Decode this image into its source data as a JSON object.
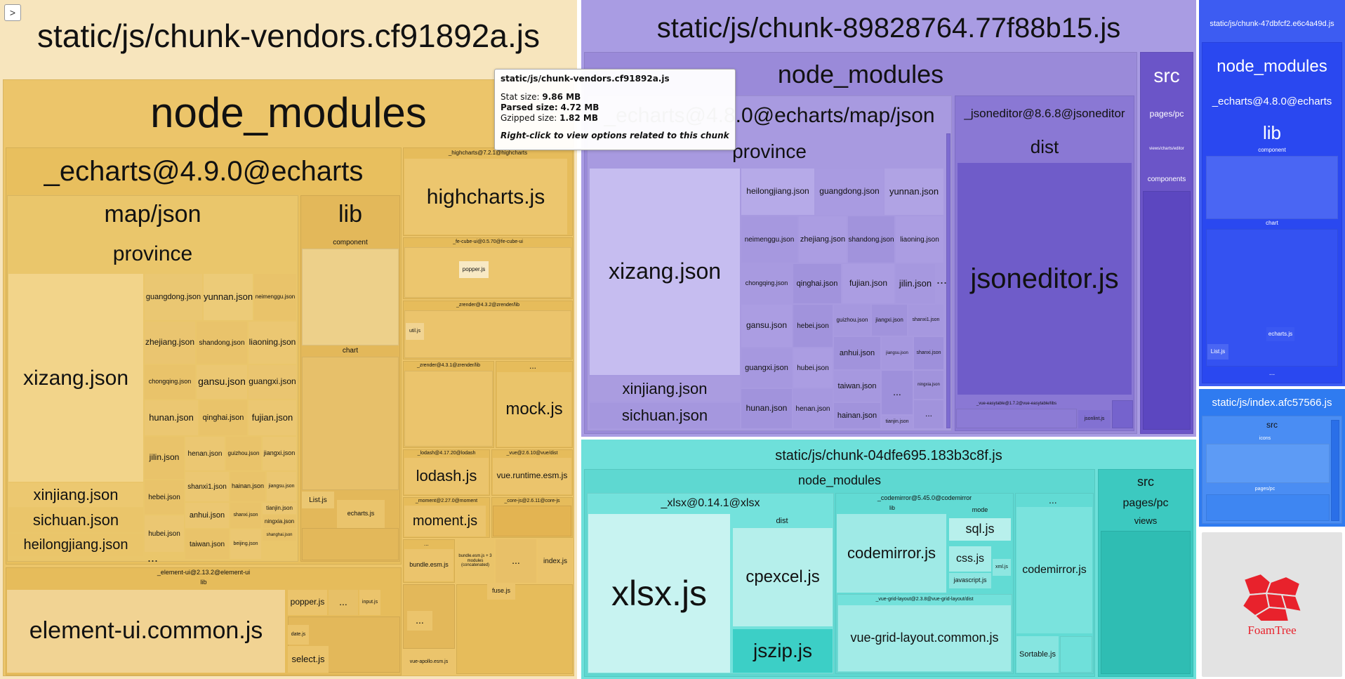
{
  "sidebar_toggle": {
    "icon": "chevron-right-icon",
    "glyph": ">"
  },
  "colors": {
    "vendors": "#e8b84f",
    "purple": "#8a73d6",
    "teal": "#3fd1c6",
    "blue": "#2a48f0",
    "index": "#2f7bf0",
    "foamtree": "#e8222c"
  },
  "vendors": {
    "title": "static/js/chunk-vendors.cf91892a.js",
    "node_modules": "node_modules",
    "echarts": "_echarts@4.9.0@echarts",
    "map_json": "map/json",
    "province": "province",
    "lib": "lib",
    "component": "component",
    "chart": "chart",
    "list_js": "List.js",
    "echarts_js": "echarts.js",
    "provinces": {
      "xizang": "xizang.json",
      "xinjiang": "xinjiang.json",
      "sichuan": "sichuan.json",
      "heilongjiang": "heilongjiang.json",
      "guangdong": "guangdong.json",
      "yunnan": "yunnan.json",
      "neimenggu": "neimenggu.json",
      "zhejiang": "zhejiang.json",
      "shandong": "shandong.json",
      "liaoning": "liaoning.json",
      "chongqing": "chongqing.json",
      "gansu": "gansu.json",
      "guangxi": "guangxi.json",
      "hunan": "hunan.json",
      "qinghai": "qinghai.json",
      "fujian": "fujian.json",
      "jilin": "jilin.json",
      "henan": "henan.json",
      "guizhou": "guizhou.json",
      "jiangxi": "jiangxi.json",
      "hebei": "hebei.json",
      "shanxi1": "shanxi1.json",
      "hainan": "hainan.json",
      "jiangsu": "jiangsu.json",
      "anhui": "anhui.json",
      "shanxi": "shanxi.json",
      "tianjin": "tianjin.json",
      "ningxia": "ningxia.json",
      "hubei": "hubei.json",
      "taiwan": "taiwan.json",
      "beijing": "beijing.json",
      "shanghai": "shanghai.json"
    },
    "highcharts_pkg": "_highcharts@7.2.1@highcharts",
    "highcharts_js": "highcharts.js",
    "fe_cube": "_fe-cube-ui@0.5.70@fe-cube-ui",
    "popper_js": "popper.js",
    "zrender_lib1": "_zrender@4.3.2@zrender/lib",
    "util_js": "util.js",
    "zrender_lib2": "_zrender@4.3.1@zrender/lib",
    "mock_js": "mock.js",
    "lodash_pkg": "_lodash@4.17.20@lodash",
    "lodash_js": "lodash.js",
    "vue_dist": "_vue@2.6.10@vue/dist",
    "vue_runtime": "vue.runtime.esm.js",
    "moment_pkg": "_moment@2.27.0@moment",
    "moment_js": "moment.js",
    "corejs": "_core-js@2.6.11@core-js",
    "bundle_esm": "bundle.esm.js",
    "bundle_concat": "bundle.esm.js + 3 modules (concatenated)",
    "index_js": "index.js",
    "fuse_js": "fuse.js",
    "vue_apollo": "vue-apollo.esm.js",
    "element_pkg": "_element-ui@2.13.2@element-ui",
    "element_lib": "lib",
    "element_common": "element-ui.common.js",
    "popper_js2": "popper.js",
    "input_js": "input.js",
    "date_js": "date.js",
    "select_js": "select.js",
    "ellipsis": "..."
  },
  "tooltip": {
    "title": "static/js/chunk-vendors.cf91892a.js",
    "stat_label": "Stat size:",
    "stat_value": "9.86 MB",
    "parsed_label": "Parsed size:",
    "parsed_value": "4.72 MB",
    "gzip_label": "Gzipped size:",
    "gzip_value": "1.82 MB",
    "hint": "Right-click to view options related to this chunk"
  },
  "purple_chunk": {
    "title": "static/js/chunk-89828764.77f88b15.js",
    "node_modules": "node_modules",
    "echarts_map": "_echarts@4.8.0@echarts/map/json",
    "province": "province",
    "xizang": "xizang.json",
    "xinjiang": "xinjiang.json",
    "sichuan": "sichuan.json",
    "heilongjiang": "heilongjiang.json",
    "guangdong": "guangdong.json",
    "yunnan": "yunnan.json",
    "neimenggu": "neimenggu.json",
    "zhejiang": "zhejiang.json",
    "shandong": "shandong.json",
    "liaoning": "liaoning.json",
    "chongqing": "chongqing.json",
    "qinghai": "qinghai.json",
    "fujian": "fujian.json",
    "jilin": "jilin.json",
    "gansu": "gansu.json",
    "hebei": "hebei.json",
    "guizhou": "guizhou.json",
    "jiangxi": "jiangxi.json",
    "shanxi1": "shanxi1.json",
    "anhui": "anhui.json",
    "jiangsu": "jiangsu.json",
    "shanxi": "shanxi.json",
    "guangxi": "guangxi.json",
    "hubei": "hubei.json",
    "taiwan": "taiwan.json",
    "ningxia": "ningxia.json",
    "hunan": "hunan.json",
    "henan": "henan.json",
    "hainan": "hainan.json",
    "tianjin": "tianjin.json",
    "jsoneditor_pkg": "_jsoneditor@8.6.8@jsoneditor",
    "dist": "dist",
    "jsoneditor_js": "jsoneditor.js",
    "easytable": "_vue-easytable@1.7.2@vue-easytable/libs",
    "jsonlint": "jsonlint.js",
    "src": "src",
    "pages_pc": "pages/pc",
    "views_charts": "views/charts/editor",
    "components": "components",
    "ellipsis": "..."
  },
  "teal_chunk": {
    "title": "static/js/chunk-04dfe695.183b3c8f.js",
    "node_modules": "node_modules",
    "xlsx_pkg": "_xlsx@0.14.1@xlsx",
    "xlsx_js": "xlsx.js",
    "dist": "dist",
    "cpexcel": "cpexcel.js",
    "jszip": "jszip.js",
    "codemirror_pkg": "_codemirror@5.45.0@codemirror",
    "lib": "lib",
    "mode": "mode",
    "codemirror_js": "codemirror.js",
    "sql_js": "sql.js",
    "css_js": "css.js",
    "xml_js": "xml.js",
    "javascript_js": "javascript.js",
    "grid_layout_pkg": "_vue-grid-layout@2.3.8@vue-grid-layout/dist",
    "grid_layout_js": "vue-grid-layout.common.js",
    "codemirror_js2": "codemirror.js",
    "sortable_js": "Sortable.js",
    "src": "src",
    "pages_pc": "pages/pc",
    "views": "views",
    "ellipsis": "..."
  },
  "blue_chunk": {
    "title": "static/js/chunk-47dbfcf2.e6c4a49d.js",
    "node_modules": "node_modules",
    "echarts": "_echarts@4.8.0@echarts",
    "lib": "lib",
    "component": "component",
    "chart": "chart",
    "echarts_js": "echarts.js",
    "list_js": "List.js",
    "ellipsis": "..."
  },
  "index_chunk": {
    "title": "static/js/index.afc57566.js",
    "src": "src",
    "icons": "icons",
    "pages_pc": "pages/pc",
    "ellipsis": "..."
  },
  "foamtree": {
    "logo_text": "FoamTree"
  }
}
